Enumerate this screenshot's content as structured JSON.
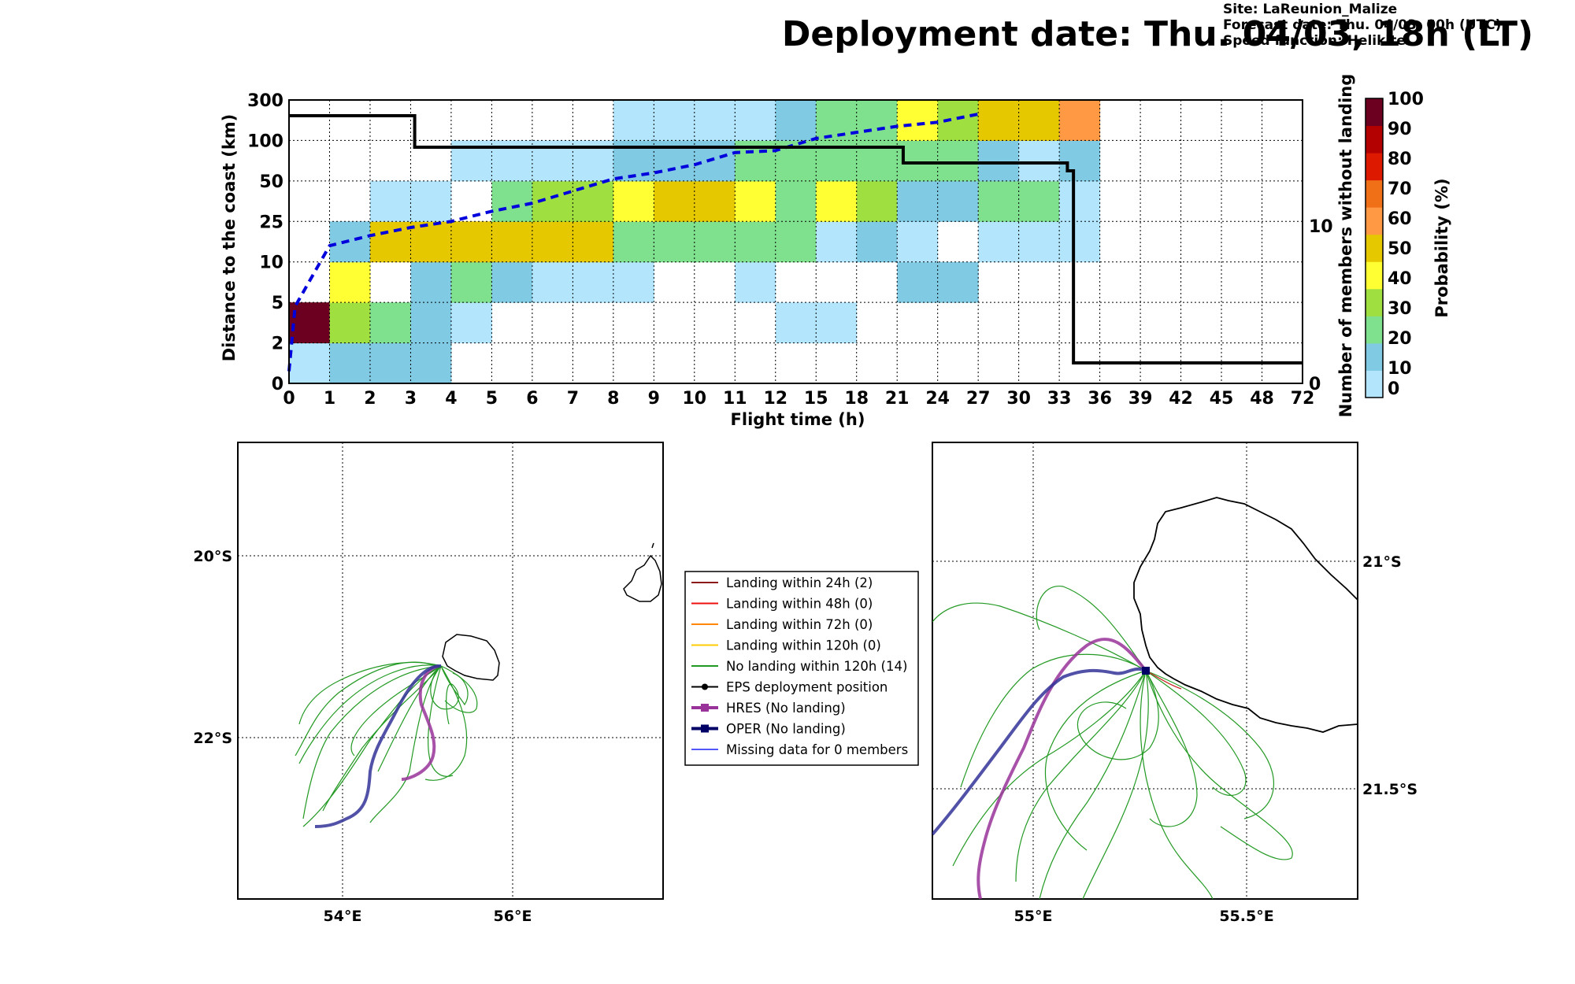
{
  "title": "Deployment date: Thu. 04/03, 18h (LT)",
  "info": {
    "site": "Site: LaReunion_Malize",
    "forecast": "Forecast date: Thu. 04/03, 00h (UTC)",
    "speed": "Speed function: Helikite"
  },
  "colors": {
    "p0": "#b3e5fc",
    "p10": "#81cae4",
    "p20": "#7fe08e",
    "p30": "#9fe040",
    "p40": "#ffff33",
    "p50": "#e6c800",
    "p60": "#ff9944",
    "p70": "#f07018",
    "p80": "#dd1a00",
    "p90": "#b30000",
    "p100": "#6b0020",
    "cdf_line": "#0000dd",
    "count_line": "#000000",
    "hres": "#993399",
    "oper": "#333399",
    "ens": "#229922",
    "land24": "#8b1a1a",
    "land48": "#ee1111",
    "land72": "#ff8800",
    "land120": "#ffcc00"
  },
  "chart_data": [
    {
      "type": "heatmap",
      "xlabel": "Flight time (h)",
      "ylabel": "Distance to the coast (km)",
      "y2label": "Number of members without landing",
      "x_ticks": [
        "0",
        "1",
        "2",
        "3",
        "4",
        "5",
        "6",
        "7",
        "8",
        "9",
        "10",
        "11",
        "12",
        "15",
        "18",
        "21",
        "24",
        "27",
        "30",
        "33",
        "36",
        "39",
        "42",
        "45",
        "48",
        "72"
      ],
      "y_ticks": [
        "0",
        "2",
        "5",
        "10",
        "25",
        "50",
        "100",
        "300"
      ],
      "y2_ticks": [
        "0",
        "10"
      ],
      "colorbar": {
        "label": "Probability (%)",
        "ticks": [
          "0",
          "10",
          "20",
          "30",
          "40",
          "50",
          "60",
          "70",
          "80",
          "90",
          "100"
        ]
      },
      "cells": [
        [
          0,
          0,
          "p0"
        ],
        [
          1,
          0,
          "p10"
        ],
        [
          2,
          0,
          "p10"
        ],
        [
          3,
          0,
          "p10"
        ],
        [
          0,
          1,
          "p100"
        ],
        [
          1,
          1,
          "p30"
        ],
        [
          2,
          1,
          "p20"
        ],
        [
          3,
          1,
          "p10"
        ],
        [
          4,
          1,
          "p0"
        ],
        [
          12,
          1,
          "p0"
        ],
        [
          13,
          1,
          "p0"
        ],
        [
          1,
          2,
          "p40"
        ],
        [
          3,
          2,
          "p10"
        ],
        [
          4,
          2,
          "p20"
        ],
        [
          5,
          2,
          "p10"
        ],
        [
          6,
          2,
          "p0"
        ],
        [
          7,
          2,
          "p0"
        ],
        [
          8,
          2,
          "p0"
        ],
        [
          11,
          2,
          "p0"
        ],
        [
          15,
          2,
          "p10"
        ],
        [
          16,
          2,
          "p10"
        ],
        [
          1,
          3,
          "p10"
        ],
        [
          2,
          3,
          "p50"
        ],
        [
          3,
          3,
          "p50"
        ],
        [
          4,
          3,
          "p50"
        ],
        [
          5,
          3,
          "p50"
        ],
        [
          6,
          3,
          "p50"
        ],
        [
          7,
          3,
          "p50"
        ],
        [
          8,
          3,
          "p20"
        ],
        [
          9,
          3,
          "p20"
        ],
        [
          10,
          3,
          "p20"
        ],
        [
          11,
          3,
          "p20"
        ],
        [
          12,
          3,
          "p20"
        ],
        [
          13,
          3,
          "p0"
        ],
        [
          14,
          3,
          "p10"
        ],
        [
          15,
          3,
          "p0"
        ],
        [
          17,
          3,
          "p0"
        ],
        [
          18,
          3,
          "p0"
        ],
        [
          19,
          3,
          "p0"
        ],
        [
          2,
          4,
          "p0"
        ],
        [
          3,
          4,
          "p0"
        ],
        [
          5,
          4,
          "p20"
        ],
        [
          6,
          4,
          "p30"
        ],
        [
          7,
          4,
          "p30"
        ],
        [
          8,
          4,
          "p40"
        ],
        [
          9,
          4,
          "p50"
        ],
        [
          10,
          4,
          "p50"
        ],
        [
          11,
          4,
          "p40"
        ],
        [
          12,
          4,
          "p20"
        ],
        [
          13,
          4,
          "p40"
        ],
        [
          14,
          4,
          "p30"
        ],
        [
          15,
          4,
          "p10"
        ],
        [
          16,
          4,
          "p10"
        ],
        [
          17,
          4,
          "p20"
        ],
        [
          18,
          4,
          "p20"
        ],
        [
          19,
          4,
          "p0"
        ],
        [
          4,
          5,
          "p0"
        ],
        [
          5,
          5,
          "p0"
        ],
        [
          6,
          5,
          "p0"
        ],
        [
          7,
          5,
          "p0"
        ],
        [
          8,
          5,
          "p10"
        ],
        [
          9,
          5,
          "p10"
        ],
        [
          10,
          5,
          "p10"
        ],
        [
          11,
          5,
          "p20"
        ],
        [
          12,
          5,
          "p20"
        ],
        [
          13,
          5,
          "p20"
        ],
        [
          14,
          5,
          "p20"
        ],
        [
          15,
          5,
          "p20"
        ],
        [
          16,
          5,
          "p20"
        ],
        [
          17,
          5,
          "p10"
        ],
        [
          18,
          5,
          "p0"
        ],
        [
          19,
          5,
          "p10"
        ],
        [
          8,
          6,
          "p0"
        ],
        [
          9,
          6,
          "p0"
        ],
        [
          10,
          6,
          "p0"
        ],
        [
          11,
          6,
          "p0"
        ],
        [
          12,
          6,
          "p10"
        ],
        [
          13,
          6,
          "p20"
        ],
        [
          14,
          6,
          "p20"
        ],
        [
          15,
          6,
          "p40"
        ],
        [
          16,
          6,
          "p30"
        ],
        [
          17,
          6,
          "p50"
        ],
        [
          18,
          6,
          "p50"
        ],
        [
          19,
          6,
          "p60"
        ]
      ],
      "cdf_points": [
        [
          0,
          0.3
        ],
        [
          0.15,
          1.9
        ],
        [
          1,
          3.4
        ],
        [
          2,
          3.65
        ],
        [
          3,
          3.85
        ],
        [
          4,
          4.0
        ],
        [
          5,
          4.25
        ],
        [
          6,
          4.45
        ],
        [
          7,
          4.75
        ],
        [
          8,
          5.05
        ],
        [
          9,
          5.2
        ],
        [
          10,
          5.4
        ],
        [
          11,
          5.7
        ],
        [
          12,
          5.75
        ],
        [
          13,
          6.05
        ],
        [
          14,
          6.2
        ],
        [
          15,
          6.35
        ],
        [
          16,
          6.45
        ],
        [
          17,
          6.65
        ]
      ],
      "count_steps": [
        [
          0,
          17
        ],
        [
          3.1,
          17
        ],
        [
          3.1,
          15
        ],
        [
          15.15,
          15
        ],
        [
          15.15,
          14
        ],
        [
          19.2,
          14
        ],
        [
          19.2,
          13.5
        ],
        [
          19.35,
          13.5
        ],
        [
          19.35,
          1.3
        ],
        [
          25,
          1.3
        ]
      ],
      "count_ylim": [
        0,
        18
      ]
    },
    {
      "type": "map",
      "lon_ticks": [
        "54°E",
        "56°E"
      ],
      "lat_ticks": [
        "20°S",
        "22°S"
      ]
    },
    {
      "type": "map",
      "lon_ticks": [
        "55°E",
        "55.5°E"
      ],
      "lat_ticks": [
        "21°S",
        "21.5°S"
      ]
    }
  ],
  "legend": [
    {
      "label": "Landing within 24h (2)",
      "color": "#8b1a1a",
      "marker": ""
    },
    {
      "label": "Landing within 48h (0)",
      "color": "#ee1111",
      "marker": ""
    },
    {
      "label": "Landing within 72h (0)",
      "color": "#ff8800",
      "marker": ""
    },
    {
      "label": "Landing within 120h (0)",
      "color": "#ffcc00",
      "marker": ""
    },
    {
      "label": "No landing within 120h (14)",
      "color": "#229922",
      "marker": ""
    },
    {
      "label": "EPS deployment position",
      "color": "#000000",
      "marker": "circle"
    },
    {
      "label": "HRES (No landing)",
      "color": "#993399",
      "marker": "square"
    },
    {
      "label": "OPER (No landing)",
      "color": "#000066",
      "marker": "square"
    },
    {
      "label": "Missing data for 0 members",
      "color": "#5555ff",
      "marker": ""
    }
  ]
}
